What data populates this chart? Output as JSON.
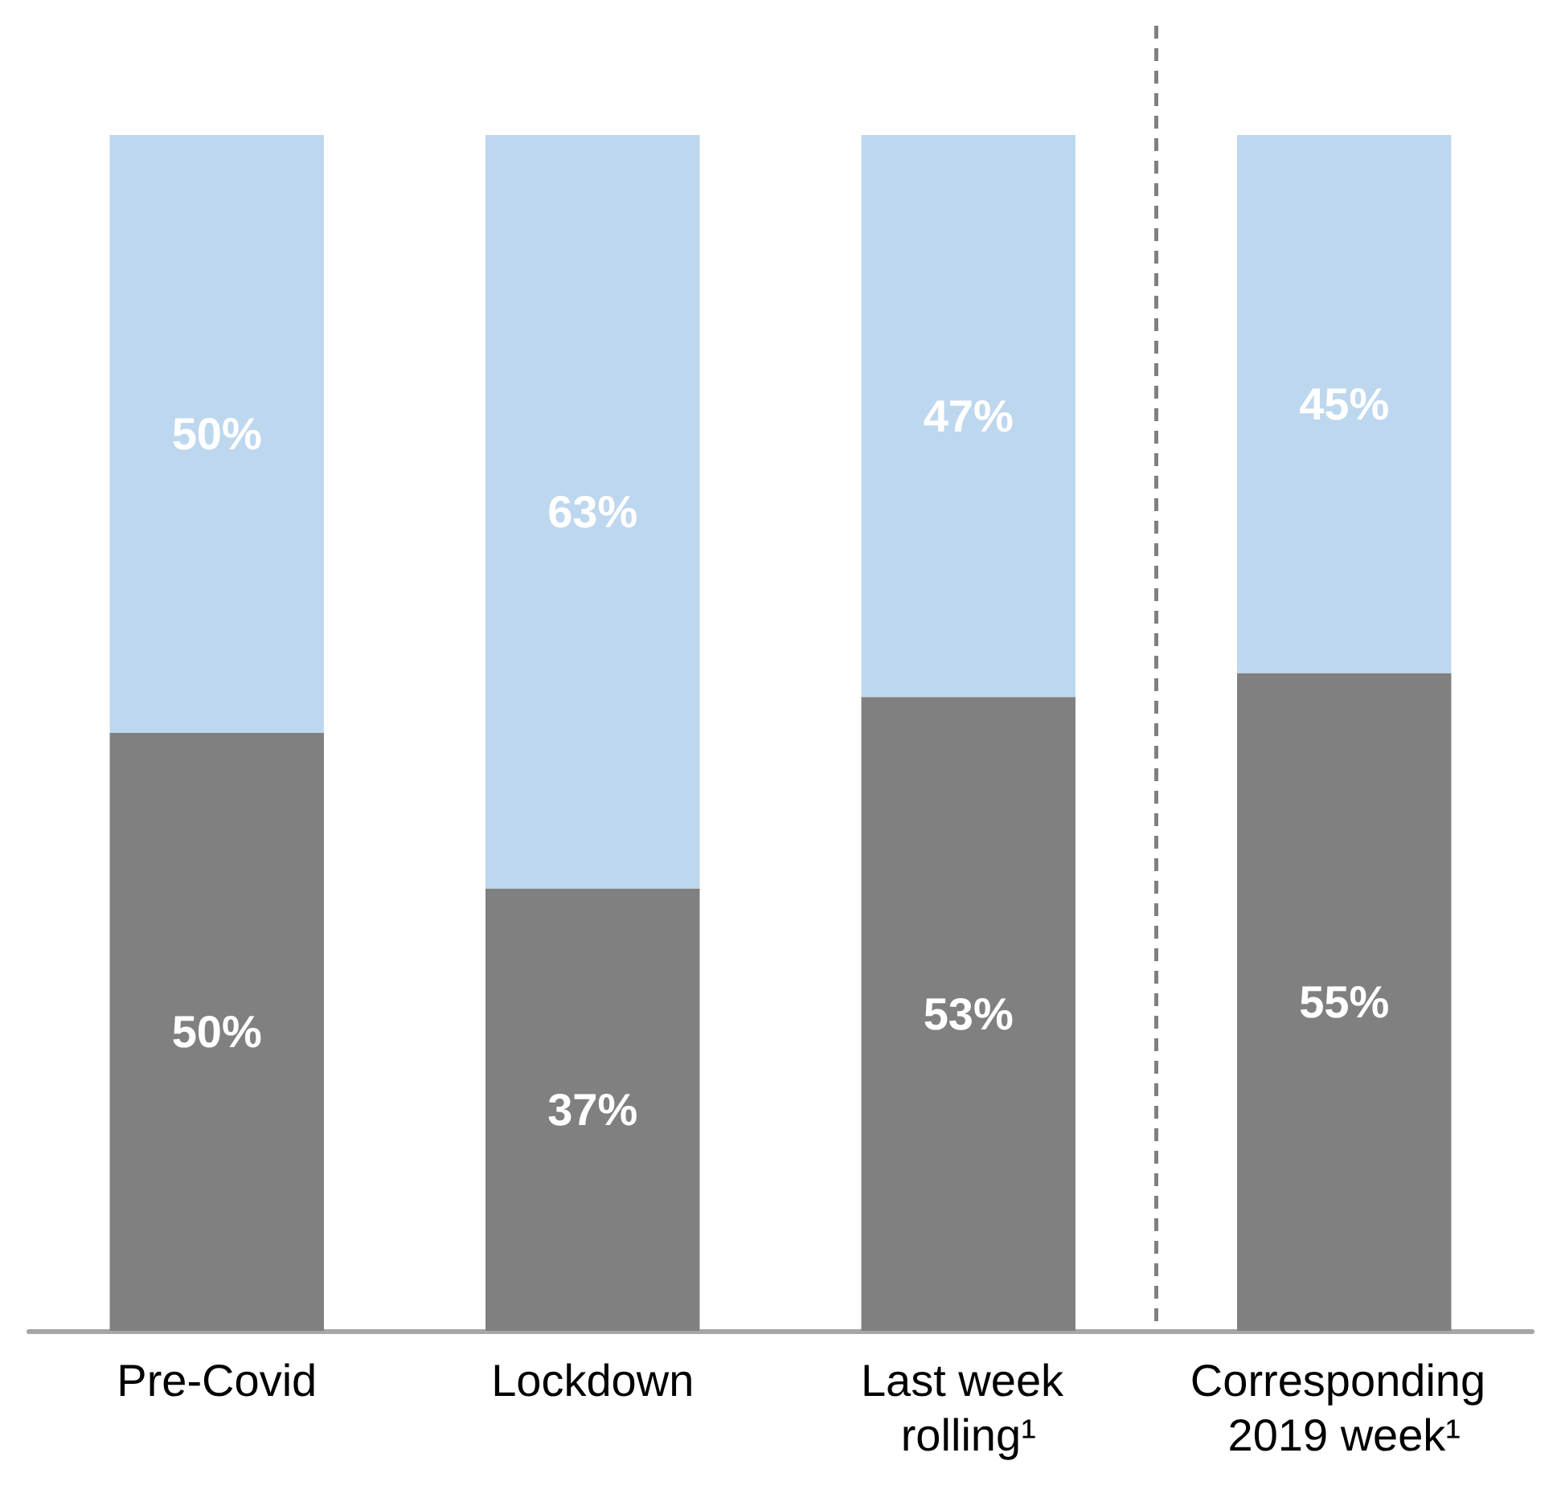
{
  "chart_data": {
    "type": "bar",
    "stacked": true,
    "categories": [
      "Pre-Covid",
      "Lockdown",
      "Last week rolling¹",
      "Corresponding 2019 week¹"
    ],
    "series": [
      {
        "color": "#808080",
        "values": [
          50,
          37,
          53,
          55
        ],
        "value_labels": [
          "50%",
          "37%",
          "53%",
          "55%"
        ]
      },
      {
        "color": "#bdd7ee",
        "values": [
          50,
          63,
          47,
          45
        ],
        "value_labels": [
          "50%",
          "63%",
          "47%",
          "45%"
        ]
      }
    ]
  }
}
